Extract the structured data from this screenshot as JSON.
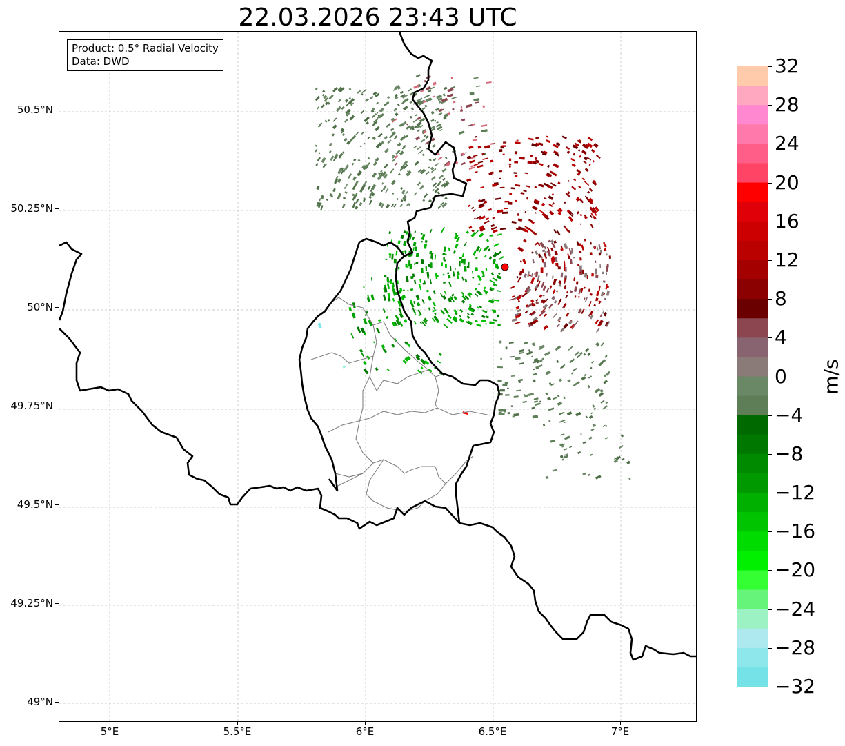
{
  "title": "22.03.2026 23:43 UTC",
  "info_box": {
    "product": "Product: 0.5° Radial Velocity",
    "data": "Data: DWD"
  },
  "map": {
    "lon_range": [
      4.8,
      7.3
    ],
    "lat_range": [
      48.95,
      50.7
    ],
    "lat_ticks": [
      {
        "value": 50.5,
        "label": "50.5°N"
      },
      {
        "value": 50.25,
        "label": "50.25°N"
      },
      {
        "value": 50.0,
        "label": "50°N"
      },
      {
        "value": 49.75,
        "label": "49.75°N"
      },
      {
        "value": 49.5,
        "label": "49.5°N"
      },
      {
        "value": 49.25,
        "label": "49.25°N"
      },
      {
        "value": 49.0,
        "label": "49°N"
      }
    ],
    "lon_ticks": [
      {
        "value": 5.0,
        "label": "5°E"
      },
      {
        "value": 5.5,
        "label": "5.5°E"
      },
      {
        "value": 6.0,
        "label": "6°E"
      },
      {
        "value": 6.5,
        "label": "6.5°E"
      },
      {
        "value": 7.0,
        "label": "7°E"
      }
    ],
    "radar_site": {
      "lon": 6.55,
      "lat": 50.11,
      "color": "#ff0000"
    },
    "gridlines": true,
    "border_color": "#000000",
    "canton_line_color": "#808080"
  },
  "colorbar": {
    "unit": "m/s",
    "range": [
      -32,
      32
    ],
    "ticks": [
      "32",
      "28",
      "24",
      "20",
      "16",
      "12",
      "8",
      "4",
      "0",
      "−4",
      "−8",
      "−12",
      "−16",
      "−20",
      "−24",
      "−28",
      "−32"
    ],
    "colors_top_to_bottom": [
      "#ffcbaa",
      "#ffa8c0",
      "#ff88d0",
      "#ff7aaa",
      "#ff5e88",
      "#ff4466",
      "#ff0000",
      "#e00008",
      "#cc0000",
      "#bb0000",
      "#a50000",
      "#8b0000",
      "#6b0000",
      "#8b4650",
      "#886470",
      "#8a7a78",
      "#6b8866",
      "#5e7e58",
      "#006a00",
      "#007800",
      "#008a00",
      "#009a00",
      "#00b000",
      "#00c400",
      "#00dc00",
      "#00f000",
      "#33ff33",
      "#66f57a",
      "#9cf2c2",
      "#aee9ef",
      "#8ee7ea",
      "#74e2e6"
    ]
  }
}
